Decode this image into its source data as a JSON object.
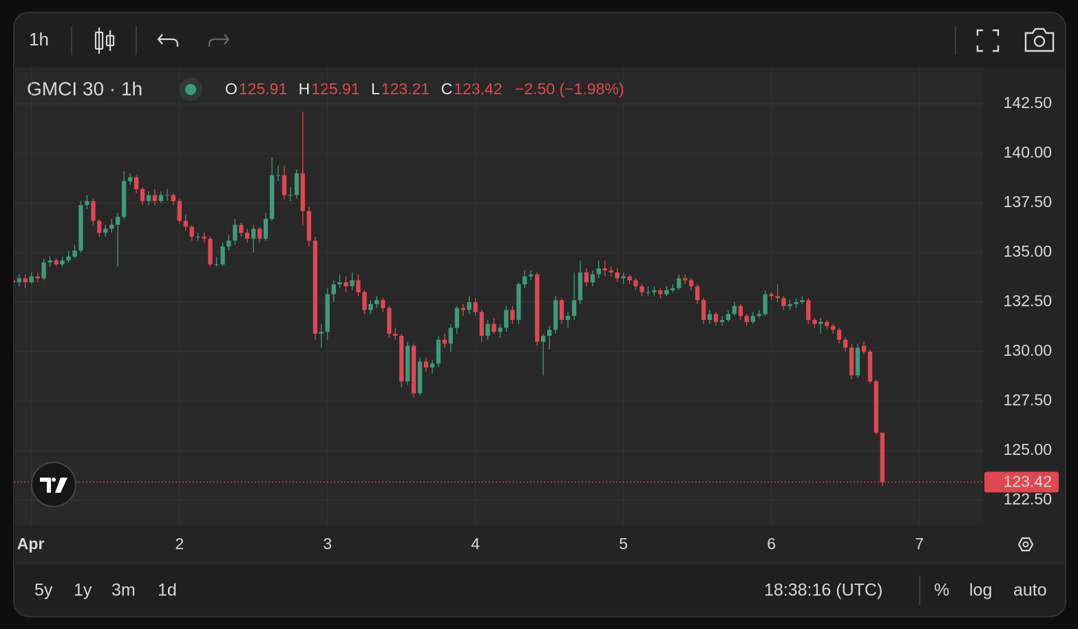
{
  "toolbar": {
    "interval": "1h"
  },
  "footer": {
    "ranges": [
      "5y",
      "1y",
      "3m",
      "1d"
    ],
    "clock": "18:38:16 (UTC)",
    "options": [
      "%",
      "log",
      "auto"
    ]
  },
  "chart_data": {
    "type": "candlestick",
    "title": "GMCI 30 · 1h",
    "ohlc_labels": [
      "O",
      "H",
      "L",
      "C"
    ],
    "change": "−2.50 (−1.98%)",
    "up_color": "#3f9a7c",
    "down_color": "#e0474f",
    "grid": true,
    "log": false,
    "xlim": [
      0.88,
      7.43
    ],
    "ylim": [
      121.25,
      144.34
    ],
    "xticks": [
      {
        "value": 1,
        "label": "Apr"
      },
      2,
      3,
      4,
      5,
      6,
      7
    ],
    "yticks": [
      {
        "value": 122.5,
        "label": "122.50"
      },
      {
        "value": 125,
        "label": "125.00"
      },
      {
        "value": 127.5,
        "label": "127.50"
      },
      {
        "value": 130,
        "label": "130.00"
      },
      {
        "value": 132.5,
        "label": "132.50"
      },
      {
        "value": 135,
        "label": "135.00"
      },
      {
        "value": 137.5,
        "label": "137.50"
      },
      {
        "value": 140,
        "label": "140.00"
      },
      {
        "value": 142.5,
        "label": "142.50"
      }
    ],
    "x": [
      0.875,
      0.917,
      0.958,
      1.0,
      1.042,
      1.083,
      1.125,
      1.167,
      1.208,
      1.25,
      1.292,
      1.333,
      1.375,
      1.417,
      1.458,
      1.5,
      1.542,
      1.583,
      1.625,
      1.667,
      1.708,
      1.75,
      1.792,
      1.833,
      1.875,
      1.917,
      1.958,
      2.0,
      2.042,
      2.083,
      2.125,
      2.167,
      2.208,
      2.25,
      2.292,
      2.333,
      2.375,
      2.417,
      2.458,
      2.5,
      2.542,
      2.583,
      2.625,
      2.667,
      2.708,
      2.75,
      2.792,
      2.833,
      2.875,
      2.917,
      2.958,
      3.0,
      3.042,
      3.083,
      3.125,
      3.167,
      3.208,
      3.25,
      3.292,
      3.333,
      3.375,
      3.417,
      3.458,
      3.5,
      3.542,
      3.583,
      3.625,
      3.667,
      3.708,
      3.75,
      3.792,
      3.833,
      3.875,
      3.917,
      3.958,
      4.0,
      4.042,
      4.083,
      4.125,
      4.167,
      4.208,
      4.25,
      4.292,
      4.333,
      4.375,
      4.417,
      4.458,
      4.5,
      4.542,
      4.583,
      4.625,
      4.667,
      4.708,
      4.75,
      4.792,
      4.833,
      4.875,
      4.917,
      4.958,
      5.0,
      5.042,
      5.083,
      5.125,
      5.167,
      5.208,
      5.25,
      5.292,
      5.333,
      5.375,
      5.417,
      5.458,
      5.5,
      5.542,
      5.583,
      5.625,
      5.667,
      5.708,
      5.75,
      5.792,
      5.833,
      5.875,
      5.917,
      5.958,
      6.0,
      6.042,
      6.083,
      6.125,
      6.167,
      6.208,
      6.25,
      6.292,
      6.333,
      6.375,
      6.417,
      6.458,
      6.5,
      6.542,
      6.583,
      6.625,
      6.667,
      6.708,
      6.75
    ],
    "ohlc": [
      [
        133.6,
        133.9,
        133.3,
        133.5
      ],
      [
        133.5,
        133.9,
        133.3,
        133.7
      ],
      [
        133.7,
        133.9,
        133.2,
        133.5
      ],
      [
        133.5,
        134.0,
        133.4,
        133.8
      ],
      [
        133.8,
        134.0,
        133.5,
        133.7
      ],
      [
        133.7,
        134.7,
        133.6,
        134.5
      ],
      [
        134.5,
        134.8,
        134.3,
        134.6
      ],
      [
        134.6,
        134.7,
        134.3,
        134.4
      ],
      [
        134.4,
        134.8,
        134.3,
        134.6
      ],
      [
        134.6,
        135.1,
        134.5,
        134.8
      ],
      [
        134.8,
        135.4,
        134.7,
        135.1
      ],
      [
        135.1,
        137.6,
        135.0,
        137.4
      ],
      [
        137.4,
        137.9,
        137.2,
        137.6
      ],
      [
        137.6,
        137.7,
        136.4,
        136.6
      ],
      [
        136.6,
        136.7,
        135.8,
        136.0
      ],
      [
        136.0,
        136.4,
        135.8,
        136.2
      ],
      [
        136.2,
        136.7,
        136.0,
        136.4
      ],
      [
        136.4,
        137.0,
        134.3,
        136.8
      ],
      [
        136.8,
        139.1,
        136.7,
        138.6
      ],
      [
        138.6,
        139.0,
        138.4,
        138.8
      ],
      [
        138.8,
        138.9,
        138.0,
        138.2
      ],
      [
        138.2,
        138.3,
        137.4,
        137.6
      ],
      [
        137.6,
        138.1,
        137.4,
        137.9
      ],
      [
        137.9,
        138.2,
        137.4,
        137.6
      ],
      [
        137.6,
        138.1,
        137.5,
        137.9
      ],
      [
        137.9,
        138.2,
        137.6,
        137.9
      ],
      [
        137.9,
        138.0,
        137.4,
        137.6
      ],
      [
        137.6,
        137.7,
        136.5,
        136.6
      ],
      [
        136.6,
        136.9,
        136.1,
        136.3
      ],
      [
        136.3,
        136.4,
        135.6,
        135.8
      ],
      [
        135.8,
        136.0,
        135.6,
        135.8
      ],
      [
        135.8,
        136.0,
        135.5,
        135.7
      ],
      [
        135.7,
        135.8,
        134.3,
        134.4
      ],
      [
        134.4,
        134.8,
        134.3,
        134.4
      ],
      [
        134.4,
        135.5,
        134.3,
        135.3
      ],
      [
        135.3,
        135.9,
        135.1,
        135.6
      ],
      [
        135.6,
        136.7,
        135.4,
        136.4
      ],
      [
        136.4,
        136.5,
        135.8,
        136.0
      ],
      [
        136.0,
        136.2,
        135.5,
        135.7
      ],
      [
        135.7,
        136.4,
        135.0,
        136.2
      ],
      [
        136.2,
        136.3,
        135.5,
        135.7
      ],
      [
        135.7,
        137.0,
        135.6,
        136.7
      ],
      [
        136.7,
        139.8,
        136.6,
        138.9
      ],
      [
        138.9,
        139.4,
        138.6,
        138.9
      ],
      [
        138.9,
        139.4,
        137.7,
        137.9
      ],
      [
        137.9,
        138.3,
        137.6,
        137.9
      ],
      [
        137.9,
        139.2,
        137.7,
        139.0
      ],
      [
        139.0,
        142.1,
        136.4,
        137.1
      ],
      [
        137.1,
        137.3,
        135.3,
        135.6
      ],
      [
        135.6,
        135.8,
        130.6,
        130.9
      ],
      [
        130.9,
        131.4,
        130.2,
        131.0
      ],
      [
        131.0,
        133.2,
        130.6,
        132.9
      ],
      [
        132.9,
        133.6,
        132.5,
        133.4
      ],
      [
        133.4,
        133.9,
        133.2,
        133.5
      ],
      [
        133.5,
        133.8,
        133.0,
        133.3
      ],
      [
        133.3,
        134.0,
        133.1,
        133.6
      ],
      [
        133.6,
        133.9,
        132.8,
        133.0
      ],
      [
        133.0,
        133.1,
        131.9,
        132.1
      ],
      [
        132.1,
        132.6,
        131.9,
        132.4
      ],
      [
        132.4,
        132.8,
        132.2,
        132.6
      ],
      [
        132.6,
        132.7,
        132.0,
        132.2
      ],
      [
        132.2,
        132.3,
        130.7,
        130.9
      ],
      [
        130.9,
        131.2,
        130.6,
        130.8
      ],
      [
        130.8,
        130.9,
        128.2,
        128.5
      ],
      [
        128.5,
        130.5,
        128.3,
        130.3
      ],
      [
        130.3,
        130.4,
        127.7,
        127.9
      ],
      [
        127.9,
        129.7,
        127.8,
        129.5
      ],
      [
        129.5,
        129.7,
        129.0,
        129.2
      ],
      [
        129.2,
        129.6,
        128.9,
        129.4
      ],
      [
        129.4,
        130.8,
        129.2,
        130.6
      ],
      [
        130.6,
        130.9,
        130.2,
        130.4
      ],
      [
        130.4,
        131.4,
        130.0,
        131.2
      ],
      [
        131.2,
        132.3,
        130.9,
        132.2
      ],
      [
        132.2,
        132.4,
        131.8,
        132.1
      ],
      [
        132.1,
        132.8,
        131.9,
        132.5
      ],
      [
        132.5,
        132.7,
        131.8,
        132.0
      ],
      [
        132.0,
        132.1,
        130.5,
        130.8
      ],
      [
        130.8,
        131.6,
        130.6,
        131.4
      ],
      [
        131.4,
        131.7,
        130.9,
        131.0
      ],
      [
        131.0,
        131.4,
        130.7,
        131.2
      ],
      [
        131.2,
        132.3,
        131.0,
        132.1
      ],
      [
        132.1,
        132.3,
        131.4,
        131.6
      ],
      [
        131.6,
        133.5,
        131.4,
        133.4
      ],
      [
        133.4,
        134.1,
        133.2,
        133.8
      ],
      [
        133.8,
        134.1,
        133.6,
        133.9
      ],
      [
        133.9,
        134.0,
        130.3,
        130.5
      ],
      [
        130.5,
        130.9,
        128.8,
        130.8
      ],
      [
        130.8,
        131.3,
        130.1,
        131.1
      ],
      [
        131.1,
        132.8,
        130.9,
        132.6
      ],
      [
        132.6,
        132.7,
        131.4,
        131.6
      ],
      [
        131.6,
        132.0,
        131.2,
        131.8
      ],
      [
        131.8,
        134.0,
        131.6,
        132.6
      ],
      [
        132.6,
        134.6,
        132.4,
        134.0
      ],
      [
        134.0,
        134.2,
        133.3,
        133.5
      ],
      [
        133.5,
        134.1,
        133.3,
        133.9
      ],
      [
        133.9,
        134.6,
        133.7,
        134.2
      ],
      [
        134.2,
        134.6,
        133.8,
        134.1
      ],
      [
        134.1,
        134.3,
        133.8,
        134.0
      ],
      [
        134.0,
        134.2,
        133.5,
        133.7
      ],
      [
        133.7,
        134.0,
        133.4,
        133.8
      ],
      [
        133.8,
        133.9,
        133.4,
        133.6
      ],
      [
        133.6,
        133.7,
        133.1,
        133.3
      ],
      [
        133.3,
        133.4,
        132.8,
        133.0
      ],
      [
        133.0,
        133.3,
        132.8,
        133.0
      ],
      [
        133.0,
        133.3,
        132.8,
        133.1
      ],
      [
        133.1,
        133.2,
        132.7,
        132.9
      ],
      [
        132.9,
        133.3,
        132.8,
        133.1
      ],
      [
        133.1,
        133.4,
        133.0,
        133.2
      ],
      [
        133.2,
        133.9,
        133.1,
        133.7
      ],
      [
        133.7,
        133.9,
        133.4,
        133.6
      ],
      [
        133.6,
        133.7,
        133.1,
        133.3
      ],
      [
        133.3,
        133.4,
        132.4,
        132.6
      ],
      [
        132.6,
        132.7,
        131.4,
        131.6
      ],
      [
        131.6,
        132.1,
        131.4,
        131.9
      ],
      [
        131.9,
        132.0,
        131.3,
        131.5
      ],
      [
        131.5,
        131.8,
        131.3,
        131.6
      ],
      [
        131.6,
        132.1,
        131.5,
        131.9
      ],
      [
        131.9,
        132.5,
        131.8,
        132.3
      ],
      [
        132.3,
        132.4,
        131.6,
        131.8
      ],
      [
        131.8,
        131.9,
        131.3,
        131.5
      ],
      [
        131.5,
        132.0,
        131.4,
        131.8
      ],
      [
        131.8,
        132.1,
        131.7,
        131.9
      ],
      [
        131.9,
        133.1,
        131.8,
        132.9
      ],
      [
        132.9,
        133.0,
        132.6,
        132.8
      ],
      [
        132.8,
        133.4,
        132.5,
        132.7
      ],
      [
        132.7,
        132.8,
        132.1,
        132.3
      ],
      [
        132.3,
        132.6,
        132.1,
        132.4
      ],
      [
        132.4,
        132.7,
        132.2,
        132.5
      ],
      [
        132.5,
        132.8,
        132.4,
        132.6
      ],
      [
        132.6,
        132.7,
        131.4,
        131.6
      ],
      [
        131.6,
        131.7,
        131.2,
        131.4
      ],
      [
        131.4,
        131.7,
        130.9,
        131.5
      ],
      [
        131.5,
        131.6,
        131.1,
        131.3
      ],
      [
        131.3,
        131.4,
        130.9,
        131.1
      ],
      [
        131.1,
        131.2,
        130.4,
        130.6
      ],
      [
        130.6,
        130.7,
        130.0,
        130.2
      ],
      [
        130.2,
        130.4,
        128.6,
        128.8
      ],
      [
        128.8,
        130.4,
        128.7,
        130.2
      ],
      [
        130.3,
        130.5,
        129.9,
        130.0
      ],
      [
        130.0,
        130.1,
        128.4,
        128.5
      ],
      [
        128.5,
        128.6,
        125.8,
        125.91
      ],
      [
        125.91,
        125.91,
        123.21,
        123.42
      ]
    ]
  }
}
